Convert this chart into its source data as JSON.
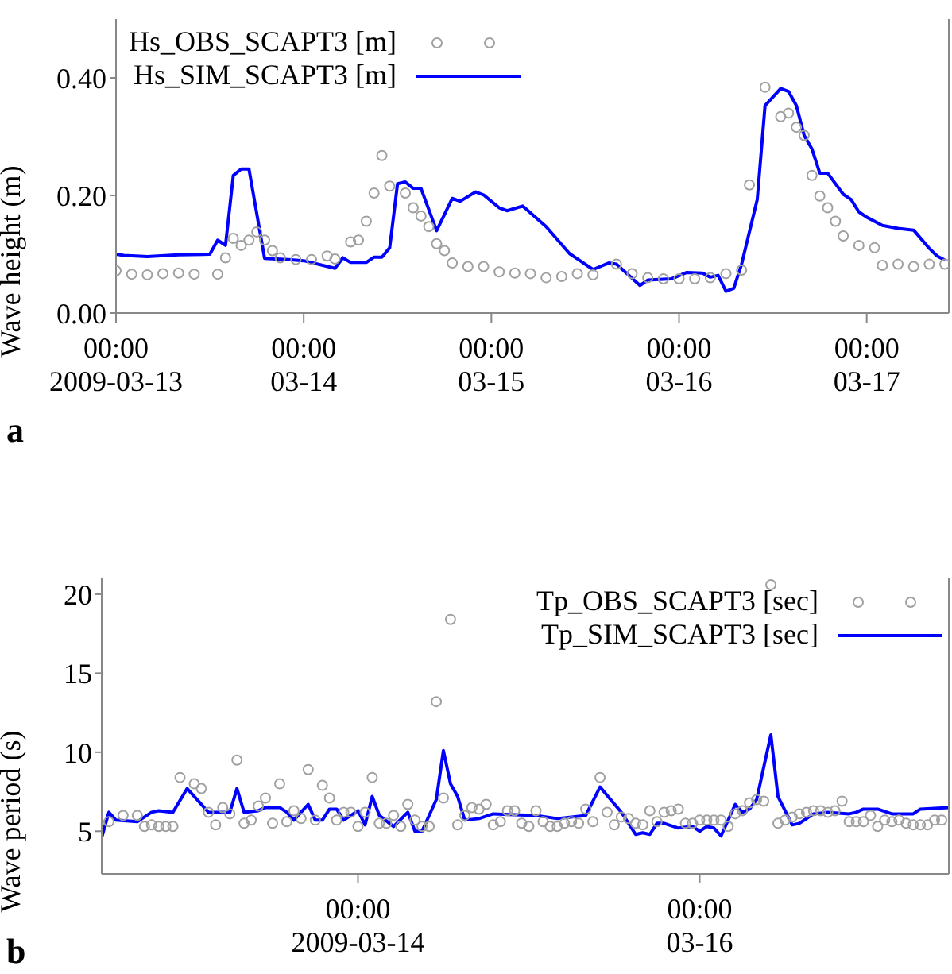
{
  "chart_data": [
    {
      "type": "line",
      "ylabel": "Wave height (m)",
      "legend": "top left",
      "annotations": [
        "a"
      ],
      "xlim": [
        "2009-03-13T00:00",
        "2009-03-17T10:30"
      ],
      "xticks": [
        {
          "value": "2009-03-13T00:00",
          "label": "00:00\n2009-03-13"
        },
        {
          "value": "2009-03-14T00:00",
          "label": "00:00\n03-14"
        },
        {
          "value": "2009-03-15T00:00",
          "label": "00:00\n03-15"
        },
        {
          "value": "2009-03-16T00:00",
          "label": "00:00\n03-16"
        },
        {
          "value": "2009-03-17T00:00",
          "label": "00:00\n03-17"
        }
      ],
      "ylim": [
        0,
        0.5
      ],
      "yticks": [
        {
          "value": 0,
          "label": "0.00"
        },
        {
          "value": 0.2,
          "label": "0.20"
        },
        {
          "value": 0.4,
          "label": "0.40"
        }
      ],
      "series": [
        {
          "name": "Hs_OBS_SCAPT3 [m]",
          "type": "scatter",
          "marker": "circle",
          "color": "#a0a0a0",
          "x": [
            "2009-03-13T00:00",
            "2009-03-13T02:00",
            "2009-03-13T04:00",
            "2009-03-13T06:00",
            "2009-03-13T08:00",
            "2009-03-13T10:00",
            "2009-03-13T13:00",
            "2009-03-13T14:00",
            "2009-03-13T15:00",
            "2009-03-13T16:00",
            "2009-03-13T17:00",
            "2009-03-13T18:00",
            "2009-03-13T19:00",
            "2009-03-13T20:00",
            "2009-03-13T21:00",
            "2009-03-13T23:00",
            "2009-03-14T01:00",
            "2009-03-14T03:00",
            "2009-03-14T04:00",
            "2009-03-14T06:00",
            "2009-03-14T07:00",
            "2009-03-14T08:00",
            "2009-03-14T09:00",
            "2009-03-14T10:00",
            "2009-03-14T11:00",
            "2009-03-14T13:00",
            "2009-03-14T14:00",
            "2009-03-14T15:00",
            "2009-03-14T16:00",
            "2009-03-14T17:00",
            "2009-03-14T18:00",
            "2009-03-14T19:00",
            "2009-03-14T21:00",
            "2009-03-14T23:00",
            "2009-03-15T01:00",
            "2009-03-15T03:00",
            "2009-03-15T05:00",
            "2009-03-15T07:00",
            "2009-03-15T09:00",
            "2009-03-15T11:00",
            "2009-03-15T13:00",
            "2009-03-15T16:00",
            "2009-03-15T18:00",
            "2009-03-15T20:00",
            "2009-03-15T22:00",
            "2009-03-16T00:00",
            "2009-03-16T02:00",
            "2009-03-16T04:00",
            "2009-03-16T06:00",
            "2009-03-16T08:00",
            "2009-03-16T09:00",
            "2009-03-16T11:00",
            "2009-03-16T13:00",
            "2009-03-16T14:00",
            "2009-03-16T15:00",
            "2009-03-16T16:00",
            "2009-03-16T17:00",
            "2009-03-16T18:00",
            "2009-03-16T19:00",
            "2009-03-16T20:00",
            "2009-03-16T21:00",
            "2009-03-16T23:00",
            "2009-03-17T01:00",
            "2009-03-17T02:00",
            "2009-03-17T04:00",
            "2009-03-17T06:00",
            "2009-03-17T08:00",
            "2009-03-17T10:00"
          ],
          "values": [
            0.072,
            0.066,
            0.065,
            0.067,
            0.068,
            0.066,
            0.066,
            0.094,
            0.127,
            0.115,
            0.124,
            0.138,
            0.124,
            0.106,
            0.094,
            0.091,
            0.091,
            0.097,
            0.092,
            0.121,
            0.124,
            0.156,
            0.204,
            0.268,
            0.216,
            0.204,
            0.179,
            0.165,
            0.147,
            0.118,
            0.106,
            0.085,
            0.079,
            0.079,
            0.07,
            0.068,
            0.067,
            0.06,
            0.062,
            0.067,
            0.065,
            0.083,
            0.067,
            0.06,
            0.058,
            0.058,
            0.058,
            0.06,
            0.067,
            0.073,
            0.218,
            0.384,
            0.334,
            0.34,
            0.316,
            0.302,
            0.234,
            0.199,
            0.179,
            0.156,
            0.131,
            0.115,
            0.111,
            0.081,
            0.083,
            0.079,
            0.083,
            0.083
          ]
        },
        {
          "name": "Hs_SIM_SCAPT3 [m]",
          "color": "#0000ff",
          "x": [
            "2009-03-13T00:00",
            "2009-03-13T01:00",
            "2009-03-13T04:00",
            "2009-03-13T08:00",
            "2009-03-13T12:00",
            "2009-03-13T13:00",
            "2009-03-13T14:00",
            "2009-03-13T15:00",
            "2009-03-13T16:00",
            "2009-03-13T17:00",
            "2009-03-13T19:00",
            "2009-03-13T22:00",
            "2009-03-14T00:00",
            "2009-03-14T04:00",
            "2009-03-14T05:00",
            "2009-03-14T06:00",
            "2009-03-14T08:00",
            "2009-03-14T09:00",
            "2009-03-14T10:00",
            "2009-03-14T11:00",
            "2009-03-14T12:00",
            "2009-03-14T13:00",
            "2009-03-14T14:00",
            "2009-03-14T15:00",
            "2009-03-14T17:00",
            "2009-03-14T19:00",
            "2009-03-14T20:00",
            "2009-03-14T22:00",
            "2009-03-14T23:00",
            "2009-03-15T01:00",
            "2009-03-15T02:00",
            "2009-03-15T04:00",
            "2009-03-15T07:00",
            "2009-03-15T10:00",
            "2009-03-15T11:00",
            "2009-03-15T13:00",
            "2009-03-15T15:00",
            "2009-03-15T16:00",
            "2009-03-15T19:00",
            "2009-03-15T20:00",
            "2009-03-15T23:00",
            "2009-03-16T01:00",
            "2009-03-16T03:00",
            "2009-03-16T04:00",
            "2009-03-16T05:00",
            "2009-03-16T06:00",
            "2009-03-16T07:00",
            "2009-03-16T08:00",
            "2009-03-16T10:00",
            "2009-03-16T11:00",
            "2009-03-16T13:00",
            "2009-03-16T14:00",
            "2009-03-16T15:00",
            "2009-03-16T16:00",
            "2009-03-16T17:00",
            "2009-03-16T18:00",
            "2009-03-16T19:00",
            "2009-03-16T21:00",
            "2009-03-16T22:00",
            "2009-03-16T23:00",
            "2009-03-17T00:00",
            "2009-03-17T02:00",
            "2009-03-17T04:00",
            "2009-03-17T06:00",
            "2009-03-17T08:00",
            "2009-03-17T09:00",
            "2009-03-17T10:00"
          ],
          "values": [
            0.1,
            0.098,
            0.096,
            0.099,
            0.1,
            0.124,
            0.115,
            0.234,
            0.245,
            0.245,
            0.093,
            0.091,
            0.089,
            0.076,
            0.094,
            0.086,
            0.086,
            0.095,
            0.095,
            0.111,
            0.22,
            0.223,
            0.212,
            0.212,
            0.14,
            0.195,
            0.19,
            0.206,
            0.201,
            0.179,
            0.174,
            0.182,
            0.147,
            0.101,
            0.092,
            0.074,
            0.085,
            0.083,
            0.047,
            0.056,
            0.058,
            0.069,
            0.068,
            0.061,
            0.064,
            0.037,
            0.042,
            0.083,
            0.193,
            0.353,
            0.382,
            0.377,
            0.353,
            0.302,
            0.279,
            0.238,
            0.238,
            0.202,
            0.193,
            0.172,
            0.163,
            0.149,
            0.144,
            0.141,
            0.11,
            0.097,
            0.09
          ]
        }
      ]
    },
    {
      "type": "line",
      "ylabel": "Wave period (s)",
      "legend": "top right",
      "annotations": [
        "b"
      ],
      "xlim": [
        "2009-03-12T12:00",
        "2009-03-17T11:00"
      ],
      "xticks": [
        {
          "value": "2009-03-14T00:00",
          "label": "00:00\n2009-03-14"
        },
        {
          "value": "2009-03-16T00:00",
          "label": "00:00\n03-16"
        }
      ],
      "ylim": [
        2.3,
        21
      ],
      "yticks": [
        5,
        10,
        15,
        20
      ],
      "series": [
        {
          "name": "Tp_OBS_SCAPT3 [sec]",
          "type": "scatter",
          "marker": "circle",
          "color": "#a0a0a0",
          "x": [
            "2009-03-12T13:00",
            "2009-03-12T15:00",
            "2009-03-12T17:00",
            "2009-03-12T18:00",
            "2009-03-12T19:00",
            "2009-03-12T20:00",
            "2009-03-12T21:00",
            "2009-03-12T22:00",
            "2009-03-12T23:00",
            "2009-03-13T01:00",
            "2009-03-13T02:00",
            "2009-03-13T03:00",
            "2009-03-13T04:00",
            "2009-03-13T05:00",
            "2009-03-13T06:00",
            "2009-03-13T07:00",
            "2009-03-13T08:00",
            "2009-03-13T09:00",
            "2009-03-13T10:00",
            "2009-03-13T11:00",
            "2009-03-13T12:00",
            "2009-03-13T13:00",
            "2009-03-13T14:00",
            "2009-03-13T15:00",
            "2009-03-13T16:00",
            "2009-03-13T17:00",
            "2009-03-13T18:00",
            "2009-03-13T19:00",
            "2009-03-13T20:00",
            "2009-03-13T21:00",
            "2009-03-13T22:00",
            "2009-03-13T23:00",
            "2009-03-14T00:00",
            "2009-03-14T01:00",
            "2009-03-14T02:00",
            "2009-03-14T03:00",
            "2009-03-14T04:00",
            "2009-03-14T05:00",
            "2009-03-14T06:00",
            "2009-03-14T07:00",
            "2009-03-14T08:00",
            "2009-03-14T09:00",
            "2009-03-14T10:00",
            "2009-03-14T11:00",
            "2009-03-14T12:00",
            "2009-03-14T13:00",
            "2009-03-14T14:00",
            "2009-03-14T15:00",
            "2009-03-14T16:00",
            "2009-03-14T17:00",
            "2009-03-14T18:00",
            "2009-03-14T19:00",
            "2009-03-14T20:00",
            "2009-03-14T21:00",
            "2009-03-14T22:00",
            "2009-03-14T23:00",
            "2009-03-15T00:00",
            "2009-03-15T01:00",
            "2009-03-15T02:00",
            "2009-03-15T03:00",
            "2009-03-15T04:00",
            "2009-03-15T05:00",
            "2009-03-15T06:00",
            "2009-03-15T07:00",
            "2009-03-15T08:00",
            "2009-03-15T09:00",
            "2009-03-15T10:00",
            "2009-03-15T11:00",
            "2009-03-15T12:00",
            "2009-03-15T13:00",
            "2009-03-15T14:00",
            "2009-03-15T15:00",
            "2009-03-15T16:00",
            "2009-03-15T17:00",
            "2009-03-15T18:00",
            "2009-03-15T19:00",
            "2009-03-15T20:00",
            "2009-03-15T21:00",
            "2009-03-15T22:00",
            "2009-03-15T23:00",
            "2009-03-16T00:00",
            "2009-03-16T01:00",
            "2009-03-16T02:00",
            "2009-03-16T03:00",
            "2009-03-16T04:00",
            "2009-03-16T05:00",
            "2009-03-16T06:00",
            "2009-03-16T07:00",
            "2009-03-16T08:00",
            "2009-03-16T09:00",
            "2009-03-16T10:00",
            "2009-03-16T11:00",
            "2009-03-16T12:00",
            "2009-03-16T13:00",
            "2009-03-16T14:00",
            "2009-03-16T15:00",
            "2009-03-16T16:00",
            "2009-03-16T17:00",
            "2009-03-16T18:00",
            "2009-03-16T19:00",
            "2009-03-16T20:00",
            "2009-03-16T21:00",
            "2009-03-16T22:00",
            "2009-03-16T23:00",
            "2009-03-17T00:00",
            "2009-03-17T01:00",
            "2009-03-17T02:00",
            "2009-03-17T03:00",
            "2009-03-17T04:00",
            "2009-03-17T05:00",
            "2009-03-17T06:00",
            "2009-03-17T07:00",
            "2009-03-17T08:00",
            "2009-03-17T09:00",
            "2009-03-17T10:00"
          ],
          "values": [
            5.6,
            6.0,
            6.0,
            5.3,
            5.4,
            5.3,
            5.3,
            5.3,
            8.4,
            8.0,
            7.7,
            6.2,
            5.4,
            6.5,
            6.1,
            9.5,
            5.5,
            5.7,
            6.6,
            7.1,
            5.5,
            8.0,
            5.6,
            6.3,
            5.8,
            8.9,
            5.7,
            7.9,
            7.1,
            5.7,
            6.2,
            6.2,
            5.3,
            6.2,
            8.4,
            5.5,
            5.5,
            6.0,
            5.3,
            6.7,
            5.7,
            5.3,
            5.3,
            13.2,
            7.1,
            18.4,
            5.4,
            6.0,
            6.5,
            6.4,
            6.7,
            5.4,
            5.6,
            6.3,
            6.3,
            5.5,
            5.3,
            6.3,
            5.6,
            5.3,
            5.3,
            5.5,
            5.6,
            5.5,
            6.4,
            5.6,
            8.4,
            6.2,
            5.4,
            5.9,
            5.8,
            5.5,
            5.4,
            6.3,
            5.6,
            6.2,
            6.3,
            6.4,
            5.5,
            5.5,
            5.7,
            5.7,
            5.7,
            5.7,
            5.3,
            6.1,
            6.3,
            6.8,
            7.0,
            6.9,
            20.6,
            5.5,
            5.7,
            5.9,
            6.1,
            6.2,
            6.3,
            6.3,
            6.2,
            6.3,
            6.9,
            5.6,
            5.6,
            5.6,
            6.0,
            5.3,
            5.7,
            5.6,
            5.7,
            5.5,
            5.4,
            5.4,
            5.4,
            5.7,
            5.7
          ]
        },
        {
          "name": "Tp_SIM_SCAPT3 [sec]",
          "color": "#0000ff",
          "x": [
            "2009-03-12T12:00",
            "2009-03-12T13:00",
            "2009-03-12T14:00",
            "2009-03-12T17:00",
            "2009-03-12T19:00",
            "2009-03-12T20:00",
            "2009-03-12T22:00",
            "2009-03-13T00:00",
            "2009-03-13T03:00",
            "2009-03-13T06:00",
            "2009-03-13T07:00",
            "2009-03-13T08:00",
            "2009-03-13T10:00",
            "2009-03-13T11:00",
            "2009-03-13T13:00",
            "2009-03-13T14:00",
            "2009-03-13T15:00",
            "2009-03-13T17:00",
            "2009-03-13T18:00",
            "2009-03-13T19:00",
            "2009-03-13T20:00",
            "2009-03-13T21:00",
            "2009-03-13T22:00",
            "2009-03-14T00:00",
            "2009-03-14T01:00",
            "2009-03-14T02:00",
            "2009-03-14T03:00",
            "2009-03-14T05:00",
            "2009-03-14T07:00",
            "2009-03-14T08:00",
            "2009-03-14T09:00",
            "2009-03-14T11:00",
            "2009-03-14T12:00",
            "2009-03-14T13:00",
            "2009-03-14T14:00",
            "2009-03-14T15:00",
            "2009-03-14T17:00",
            "2009-03-14T19:00",
            "2009-03-15T01:00",
            "2009-03-15T04:00",
            "2009-03-15T08:00",
            "2009-03-15T10:00",
            "2009-03-15T13:00",
            "2009-03-15T15:00",
            "2009-03-15T16:00",
            "2009-03-15T17:00",
            "2009-03-15T18:00",
            "2009-03-15T19:00",
            "2009-03-15T21:00",
            "2009-03-15T23:00",
            "2009-03-16T00:00",
            "2009-03-16T01:00",
            "2009-03-16T02:00",
            "2009-03-16T03:00",
            "2009-03-16T05:00",
            "2009-03-16T06:00",
            "2009-03-16T07:00",
            "2009-03-16T08:00",
            "2009-03-16T10:00",
            "2009-03-16T11:00",
            "2009-03-16T13:00",
            "2009-03-16T14:00",
            "2009-03-16T16:00",
            "2009-03-16T18:00",
            "2009-03-16T21:00",
            "2009-03-16T22:00",
            "2009-03-16T23:00",
            "2009-03-17T01:00",
            "2009-03-17T03:00",
            "2009-03-17T06:00",
            "2009-03-17T07:00",
            "2009-03-17T11:00"
          ],
          "values": [
            4.6,
            6.2,
            5.7,
            5.6,
            6.2,
            6.3,
            6.2,
            7.7,
            6.2,
            6.2,
            7.7,
            6.2,
            6.3,
            6.5,
            6.5,
            6.2,
            5.7,
            6.7,
            5.7,
            5.7,
            6.4,
            6.4,
            5.7,
            6.3,
            5.4,
            7.2,
            6.0,
            5.3,
            6.2,
            5.0,
            5.0,
            7.0,
            10.1,
            8.0,
            7.2,
            5.7,
            5.8,
            6.1,
            6.0,
            5.8,
            6.0,
            7.8,
            6.2,
            4.8,
            4.9,
            4.8,
            5.5,
            5.5,
            5.2,
            5.3,
            5.0,
            5.3,
            5.2,
            4.7,
            6.7,
            6.2,
            6.4,
            7.0,
            11.1,
            7.2,
            5.4,
            5.5,
            6.1,
            6.2,
            6.1,
            6.2,
            6.4,
            6.4,
            6.1,
            6.1,
            6.4,
            6.5
          ]
        }
      ]
    }
  ]
}
